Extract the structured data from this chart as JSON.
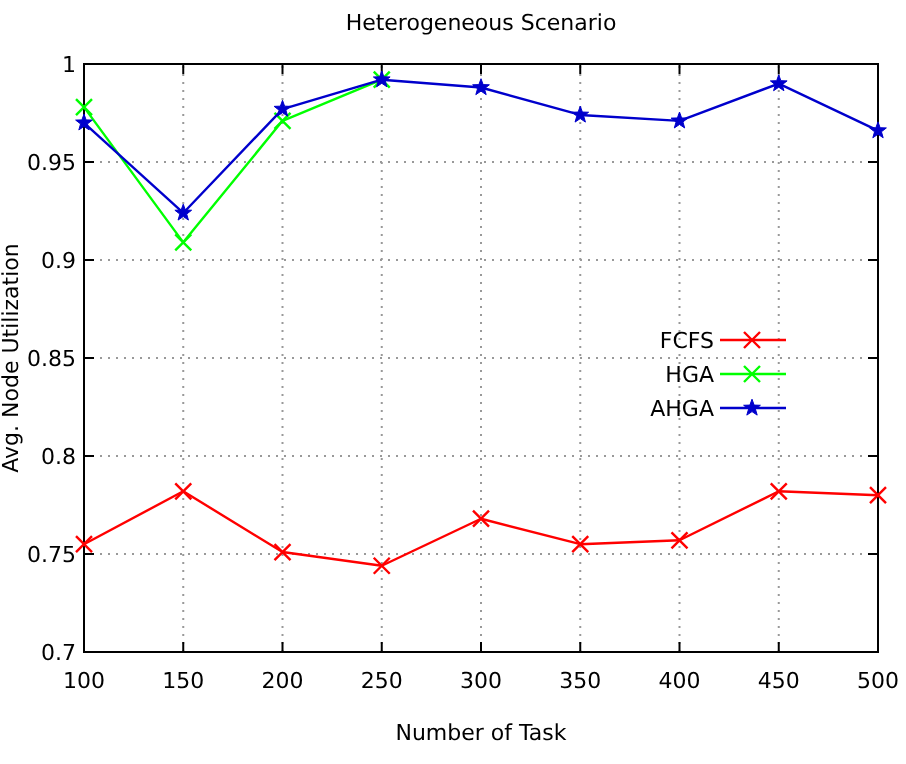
{
  "chart_data": {
    "type": "line",
    "title": "Heterogeneous Scenario",
    "xlabel": "Number of Task",
    "ylabel": "Avg. Node Utilization",
    "x": [
      100,
      150,
      200,
      250,
      300,
      350,
      400,
      450,
      500
    ],
    "series": [
      {
        "name": "FCFS",
        "color": "#ff0000",
        "marker": "cross",
        "values": [
          0.755,
          0.782,
          0.751,
          0.744,
          0.768,
          0.755,
          0.757,
          0.782,
          0.78
        ]
      },
      {
        "name": "HGA",
        "color": "#00ff00",
        "marker": "cross",
        "values": [
          0.978,
          0.909,
          0.971,
          0.992,
          null,
          null,
          null,
          null,
          null
        ]
      },
      {
        "name": "AHGA",
        "color": "#0000cc",
        "marker": "star",
        "values": [
          0.97,
          0.924,
          0.977,
          0.992,
          0.988,
          0.974,
          0.971,
          0.99,
          0.966
        ]
      }
    ],
    "xlim": [
      100,
      500
    ],
    "xticks": [
      100,
      150,
      200,
      250,
      300,
      350,
      400,
      450,
      500
    ],
    "ylim": [
      0.7,
      1
    ],
    "yticks": [
      0.7,
      0.75,
      0.8,
      0.85,
      0.9,
      0.95,
      1
    ],
    "grid": true,
    "legend": "right",
    "line_style": "solid"
  }
}
